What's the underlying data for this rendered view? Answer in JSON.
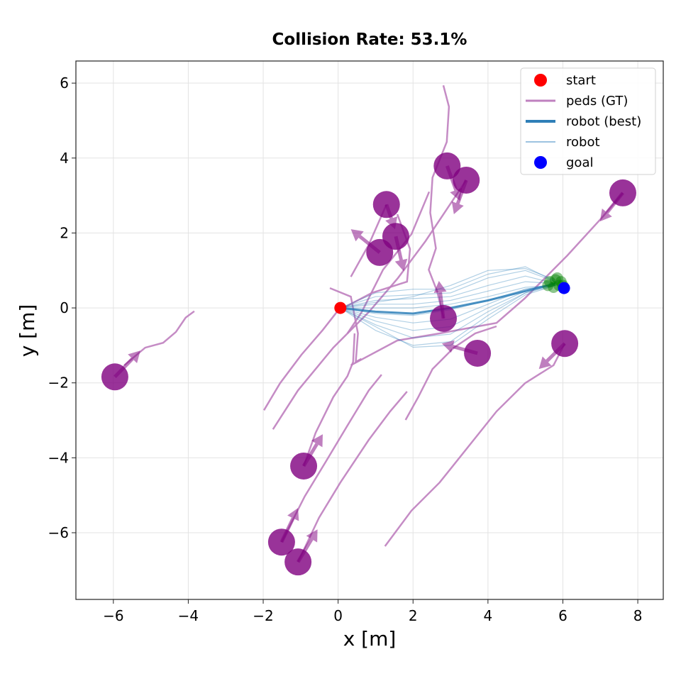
{
  "chart_data": {
    "type": "line",
    "title": "Collision Rate: 53.1%",
    "xlabel": "x [m]",
    "ylabel": "y [m]",
    "xlim": [
      -7.0,
      8.68
    ],
    "ylim": [
      -7.78,
      6.59
    ],
    "xticks": [
      -6,
      -4,
      -2,
      0,
      2,
      4,
      6,
      8
    ],
    "yticks": [
      -6,
      -4,
      -2,
      0,
      2,
      4,
      6
    ],
    "xtick_labels": [
      "−6",
      "−4",
      "−2",
      "0",
      "2",
      "4",
      "6",
      "8"
    ],
    "ytick_labels": [
      "−6",
      "−4",
      "−2",
      "0",
      "2",
      "4",
      "6"
    ],
    "grid": true,
    "legend_position": "top-right",
    "legend": [
      {
        "label": "start",
        "kind": "dot",
        "color": "#ff0000"
      },
      {
        "label": "peds (GT)",
        "kind": "line",
        "color": "#bf80bf"
      },
      {
        "label": "robot (best)",
        "kind": "thick-line",
        "color": "#2f7fb8"
      },
      {
        "label": "robot",
        "kind": "thin-line",
        "color": "#9dc3e0"
      },
      {
        "label": "goal",
        "kind": "dot",
        "color": "#0000ff"
      }
    ],
    "colors": {
      "ped": "#800080",
      "ped_traj": "#bf80bf",
      "robot": "#1f77b4",
      "start": "#ff0000",
      "goal": "#0000ff",
      "endpoints": "#008000"
    },
    "start": [
      0.06,
      0.0
    ],
    "goal": [
      6.03,
      0.53
    ],
    "robot_endpoints_center": [
      5.8,
      0.65
    ],
    "pedestrians": [
      {
        "pos": [
          -5.96,
          -1.84
        ],
        "heading_to": [
          -5.28,
          -1.14
        ]
      },
      {
        "pos": [
          -0.92,
          -4.22
        ],
        "heading_to": [
          -0.41,
          -3.37
        ]
      },
      {
        "pos": [
          -1.51,
          -6.25
        ],
        "heading_to": [
          -1.07,
          -5.34
        ]
      },
      {
        "pos": [
          -1.07,
          -6.78
        ],
        "heading_to": [
          -0.55,
          -5.91
        ]
      },
      {
        "pos": [
          1.29,
          2.76
        ],
        "heading_to": [
          1.52,
          2.1
        ]
      },
      {
        "pos": [
          1.11,
          1.48
        ],
        "heading_to": [
          0.34,
          2.1
        ]
      },
      {
        "pos": [
          1.54,
          1.91
        ],
        "heading_to": [
          1.75,
          0.98
        ]
      },
      {
        "pos": [
          2.91,
          3.79
        ],
        "heading_to": [
          3.25,
          2.86
        ]
      },
      {
        "pos": [
          3.42,
          3.41
        ],
        "heading_to": [
          3.09,
          2.5
        ]
      },
      {
        "pos": [
          7.6,
          3.07
        ],
        "heading_to": [
          6.99,
          2.31
        ]
      },
      {
        "pos": [
          2.81,
          -0.28
        ],
        "heading_to": [
          2.69,
          0.72
        ]
      },
      {
        "pos": [
          3.72,
          -1.21
        ],
        "heading_to": [
          2.77,
          -0.95
        ]
      },
      {
        "pos": [
          6.05,
          -0.95
        ],
        "heading_to": [
          5.36,
          -1.63
        ]
      }
    ],
    "ped_trajectories": [
      [
        [
          -3.84,
          -0.09
        ],
        [
          -4.07,
          -0.26
        ],
        [
          -4.33,
          -0.64
        ],
        [
          -4.67,
          -0.93
        ],
        [
          -5.15,
          -1.06
        ],
        [
          -5.71,
          -1.53
        ]
      ],
      [
        [
          -1.98,
          -2.73
        ],
        [
          -1.55,
          -2.01
        ],
        [
          -0.98,
          -1.25
        ],
        [
          -0.41,
          -0.59
        ],
        [
          0.02,
          -0.04
        ]
      ],
      [
        [
          -1.74,
          -3.24
        ],
        [
          -1.07,
          -2.2
        ],
        [
          -0.13,
          -1.06
        ],
        [
          0.82,
          -0.11
        ],
        [
          1.6,
          0.8
        ],
        [
          2.33,
          1.78
        ],
        [
          3.28,
          3.2
        ],
        [
          3.42,
          3.41
        ]
      ],
      [
        [
          2.81,
          5.94
        ],
        [
          2.96,
          5.37
        ],
        [
          2.9,
          4.43
        ],
        [
          2.52,
          3.48
        ],
        [
          2.46,
          2.54
        ],
        [
          2.61,
          1.59
        ],
        [
          2.42,
          1.02
        ],
        [
          2.64,
          0.45
        ],
        [
          2.82,
          -0.28
        ]
      ],
      [
        [
          -0.22,
          0.53
        ],
        [
          0.34,
          0.3
        ],
        [
          0.53,
          -0.68
        ],
        [
          0.47,
          -1.44
        ],
        [
          0.62,
          -1.36
        ]
      ],
      [
        [
          -0.92,
          -4.22
        ],
        [
          -0.6,
          -3.33
        ],
        [
          -0.13,
          -2.38
        ],
        [
          0.25,
          -1.82
        ],
        [
          0.4,
          -1.44
        ],
        [
          0.44,
          -0.68
        ]
      ],
      [
        [
          -1.51,
          -6.25
        ],
        [
          -0.89,
          -5.03
        ],
        [
          -0.32,
          -4.09
        ],
        [
          0.25,
          -3.14
        ],
        [
          0.82,
          -2.2
        ],
        [
          1.16,
          -1.78
        ]
      ],
      [
        [
          -1.07,
          -6.78
        ],
        [
          -0.51,
          -5.6
        ],
        [
          0.06,
          -4.66
        ],
        [
          0.82,
          -3.52
        ],
        [
          1.39,
          -2.76
        ],
        [
          1.84,
          -2.23
        ]
      ],
      [
        [
          1.8,
          -2.99
        ],
        [
          2.14,
          -2.38
        ],
        [
          2.52,
          -1.63
        ],
        [
          3.09,
          -1.06
        ],
        [
          3.66,
          -0.68
        ],
        [
          4.23,
          -0.49
        ]
      ],
      [
        [
          1.25,
          -6.36
        ],
        [
          1.96,
          -5.41
        ],
        [
          2.71,
          -4.66
        ],
        [
          3.47,
          -3.71
        ],
        [
          4.23,
          -2.76
        ],
        [
          4.99,
          -2.01
        ],
        [
          5.75,
          -1.53
        ],
        [
          6.05,
          -0.95
        ]
      ],
      [
        [
          0.34,
          -1.53
        ],
        [
          1.58,
          -0.87
        ],
        [
          2.71,
          -0.68
        ],
        [
          4.23,
          -0.4
        ],
        [
          4.99,
          0.26
        ],
        [
          6.12,
          1.4
        ],
        [
          7.07,
          2.44
        ],
        [
          7.6,
          3.07
        ]
      ],
      [
        [
          0.34,
          0.83
        ],
        [
          0.82,
          1.69
        ],
        [
          1.29,
          2.76
        ]
      ],
      [
        [
          0.06,
          -0.04
        ],
        [
          0.9,
          0.4
        ],
        [
          1.84,
          0.7
        ],
        [
          1.92,
          1.57
        ],
        [
          1.58,
          2.5
        ]
      ],
      [
        [
          2.43,
          3.1
        ],
        [
          1.96,
          1.97
        ],
        [
          1.2,
          1.02
        ],
        [
          0.63,
          -0.11
        ],
        [
          0.25,
          -0.68
        ]
      ]
    ],
    "robot_best": [
      [
        0.06,
        0
      ],
      [
        1,
        -0.1
      ],
      [
        2,
        -0.15
      ],
      [
        3,
        0
      ],
      [
        4,
        0.2
      ],
      [
        5,
        0.45
      ],
      [
        5.8,
        0.65
      ]
    ],
    "robot_samples": [
      [
        [
          0.06,
          0
        ],
        [
          1,
          0.4
        ],
        [
          2,
          0.5
        ],
        [
          3,
          0.5
        ],
        [
          4,
          0.9
        ],
        [
          5,
          1.1
        ],
        [
          5.8,
          0.7
        ]
      ],
      [
        [
          0.06,
          0
        ],
        [
          1,
          0.3
        ],
        [
          2,
          0.35
        ],
        [
          3,
          0.4
        ],
        [
          4,
          0.8
        ],
        [
          5,
          1.0
        ],
        [
          5.8,
          0.7
        ]
      ],
      [
        [
          0.06,
          0
        ],
        [
          1,
          0.2
        ],
        [
          2,
          0.25
        ],
        [
          3,
          0.3
        ],
        [
          4,
          0.6
        ],
        [
          5,
          0.85
        ],
        [
          5.8,
          0.65
        ]
      ],
      [
        [
          0.06,
          0
        ],
        [
          1,
          0.1
        ],
        [
          2,
          0.1
        ],
        [
          3,
          0.2
        ],
        [
          4,
          0.45
        ],
        [
          5,
          0.7
        ],
        [
          5.8,
          0.65
        ]
      ],
      [
        [
          0.06,
          0
        ],
        [
          1,
          0.0
        ],
        [
          2,
          0.0
        ],
        [
          3,
          0.1
        ],
        [
          4,
          0.3
        ],
        [
          5,
          0.55
        ],
        [
          5.8,
          0.6
        ]
      ],
      [
        [
          0.06,
          0
        ],
        [
          1,
          -0.15
        ],
        [
          2,
          -0.2
        ],
        [
          3,
          -0.05
        ],
        [
          4,
          0.2
        ],
        [
          5,
          0.5
        ],
        [
          5.8,
          0.65
        ]
      ],
      [
        [
          0.06,
          0
        ],
        [
          1,
          -0.25
        ],
        [
          2,
          -0.4
        ],
        [
          3,
          -0.3
        ],
        [
          4,
          0.1
        ],
        [
          5,
          0.5
        ],
        [
          5.8,
          0.6
        ]
      ],
      [
        [
          0.06,
          0
        ],
        [
          1,
          -0.35
        ],
        [
          2,
          -0.6
        ],
        [
          3,
          -0.5
        ],
        [
          4,
          0.0
        ],
        [
          5,
          0.45
        ],
        [
          5.8,
          0.6
        ]
      ],
      [
        [
          0.06,
          0
        ],
        [
          1,
          -0.45
        ],
        [
          2,
          -0.8
        ],
        [
          3,
          -0.7
        ],
        [
          4,
          -0.1
        ],
        [
          5,
          0.4
        ],
        [
          5.8,
          0.65
        ]
      ],
      [
        [
          0.06,
          0
        ],
        [
          1,
          -0.6
        ],
        [
          2,
          -1.0
        ],
        [
          3,
          -0.9
        ],
        [
          4,
          -0.2
        ],
        [
          5,
          0.4
        ],
        [
          5.8,
          0.6
        ]
      ],
      [
        [
          0.06,
          0
        ],
        [
          1,
          -0.5
        ],
        [
          2,
          -1.05
        ],
        [
          3,
          -1.0
        ],
        [
          4,
          -0.3
        ],
        [
          5,
          0.35
        ],
        [
          5.8,
          0.6
        ]
      ],
      [
        [
          0.06,
          0
        ],
        [
          1,
          0.15
        ],
        [
          2,
          0.3
        ],
        [
          3,
          0.6
        ],
        [
          4,
          1.0
        ],
        [
          5,
          1.05
        ],
        [
          5.8,
          0.75
        ]
      ]
    ]
  }
}
